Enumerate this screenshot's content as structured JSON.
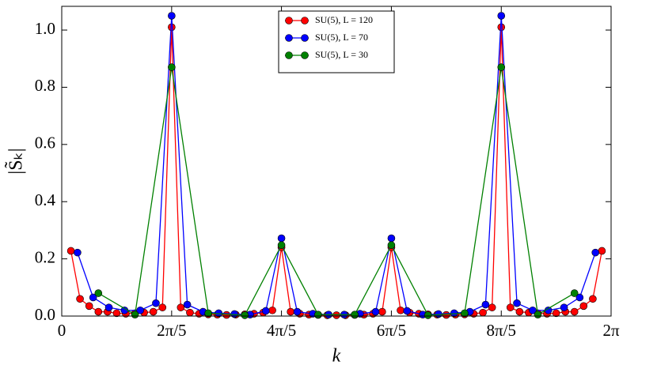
{
  "chart_data": {
    "type": "line",
    "xlabel": "k",
    "ylabel": "|S̃ₖ|",
    "xlim": [
      0,
      6.283
    ],
    "ylim": [
      0,
      1.083
    ],
    "xticks": [
      0,
      {
        "value": 1.257,
        "label": "2π/5"
      },
      {
        "value": 2.513,
        "label": "4π/5"
      },
      {
        "value": 3.77,
        "label": "6π/5"
      },
      {
        "value": 5.027,
        "label": "8π/5"
      },
      {
        "value": 6.283,
        "label": "2π"
      }
    ],
    "yticks": [
      {
        "value": 0,
        "label": "0.0"
      },
      0.2,
      0.4,
      0.6,
      0.8,
      {
        "value": 1,
        "label": "1.0"
      }
    ],
    "legend": "upper center",
    "series": [
      {
        "name": "SU(5), L = 120",
        "color": "#ff0000",
        "x": [
          0.105,
          0.209,
          0.314,
          0.419,
          0.524,
          0.628,
          0.733,
          0.838,
          0.942,
          1.047,
          1.152,
          1.257,
          1.361,
          1.466,
          1.571,
          1.676,
          1.78,
          1.885,
          1.99,
          2.094,
          2.199,
          2.304,
          2.409,
          2.513,
          2.618,
          2.723,
          2.827,
          2.932,
          3.037,
          3.142,
          3.246,
          3.351,
          3.456,
          3.56,
          3.665,
          3.77,
          3.875,
          3.979,
          4.084,
          4.189,
          4.294,
          4.398,
          4.503,
          4.608,
          4.712,
          4.817,
          4.922,
          5.027,
          5.131,
          5.236,
          5.341,
          5.445,
          5.55,
          5.655,
          5.76,
          5.864,
          5.969,
          6.074,
          6.178
        ],
        "values": [
          0.228,
          0.06,
          0.035,
          0.015,
          0.015,
          0.01,
          0.008,
          0.01,
          0.012,
          0.015,
          0.03,
          1.01,
          0.03,
          0.012,
          0.008,
          0.006,
          0.005,
          0.004,
          0.005,
          0.006,
          0.008,
          0.012,
          0.02,
          0.24,
          0.015,
          0.008,
          0.005,
          0.004,
          0.003,
          0.003,
          0.003,
          0.004,
          0.005,
          0.008,
          0.015,
          0.24,
          0.02,
          0.012,
          0.008,
          0.006,
          0.005,
          0.004,
          0.005,
          0.006,
          0.008,
          0.012,
          0.03,
          1.01,
          0.03,
          0.015,
          0.012,
          0.01,
          0.008,
          0.01,
          0.015,
          0.015,
          0.035,
          0.06,
          0.228
        ]
      },
      {
        "name": "SU(5), L = 70",
        "color": "#0000ff",
        "x": [
          0.18,
          0.359,
          0.539,
          0.718,
          0.898,
          1.077,
          1.257,
          1.436,
          1.616,
          1.795,
          1.975,
          2.154,
          2.334,
          2.513,
          2.693,
          2.872,
          3.052,
          3.231,
          3.411,
          3.59,
          3.77,
          3.949,
          4.129,
          4.309,
          4.488,
          4.668,
          4.847,
          5.027,
          5.206,
          5.386,
          5.565,
          5.745,
          5.924,
          6.104
        ],
        "values": [
          0.222,
          0.065,
          0.03,
          0.02,
          0.02,
          0.045,
          1.05,
          0.04,
          0.015,
          0.01,
          0.007,
          0.005,
          0.018,
          0.272,
          0.015,
          0.008,
          0.005,
          0.005,
          0.008,
          0.015,
          0.272,
          0.018,
          0.005,
          0.007,
          0.01,
          0.015,
          0.04,
          1.05,
          0.045,
          0.02,
          0.02,
          0.03,
          0.065,
          0.222
        ]
      },
      {
        "name": "SU(5), L = 30",
        "color": "#008000",
        "x": [
          0.419,
          0.838,
          1.257,
          1.676,
          2.094,
          2.513,
          2.932,
          3.351,
          3.77,
          4.189,
          4.608,
          5.027,
          5.445,
          5.864
        ],
        "values": [
          0.08,
          0.005,
          0.87,
          0.01,
          0.003,
          0.248,
          0.005,
          0.005,
          0.248,
          0.003,
          0.01,
          0.87,
          0.005,
          0.08
        ]
      }
    ]
  }
}
